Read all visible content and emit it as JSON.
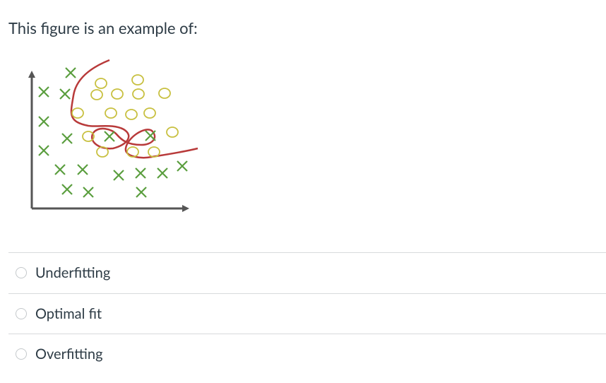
{
  "question": {
    "text": "This figure is an example of:"
  },
  "options": [
    "Underfitting",
    "Optimal fit",
    "Overfitting"
  ]
}
